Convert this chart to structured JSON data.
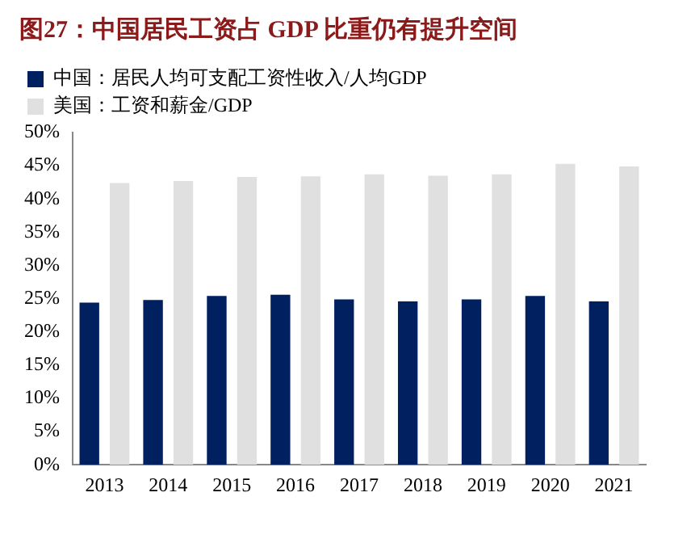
{
  "chart_data": {
    "type": "bar",
    "title": "图27：中国居民工资占 GDP 比重仍有提升空间",
    "categories": [
      "2013",
      "2014",
      "2015",
      "2016",
      "2017",
      "2018",
      "2019",
      "2020",
      "2021"
    ],
    "series": [
      {
        "name": "中国：居民人均可支配工资性收入/人均GDP",
        "color": "#002060",
        "values": [
          24.4,
          24.8,
          25.4,
          25.6,
          24.9,
          24.6,
          24.9,
          25.4,
          24.6
        ]
      },
      {
        "name": "美国：工资和薪金/GDP",
        "color": "#e0e0e0",
        "values": [
          42.4,
          42.7,
          43.3,
          43.4,
          43.7,
          43.5,
          43.7,
          45.3,
          44.9
        ]
      }
    ],
    "ylim": [
      0,
      50
    ],
    "yticks": [
      {
        "value": 0,
        "label": "0%"
      },
      {
        "value": 5,
        "label": "5%"
      },
      {
        "value": 10,
        "label": "10%"
      },
      {
        "value": 15,
        "label": "15%"
      },
      {
        "value": 20,
        "label": "20%"
      },
      {
        "value": 25,
        "label": "25%"
      },
      {
        "value": 30,
        "label": "30%"
      },
      {
        "value": 35,
        "label": "35%"
      },
      {
        "value": 40,
        "label": "40%"
      },
      {
        "value": 45,
        "label": "45%"
      },
      {
        "value": 50,
        "label": "50%"
      }
    ],
    "grid": false,
    "legend": "top left"
  }
}
